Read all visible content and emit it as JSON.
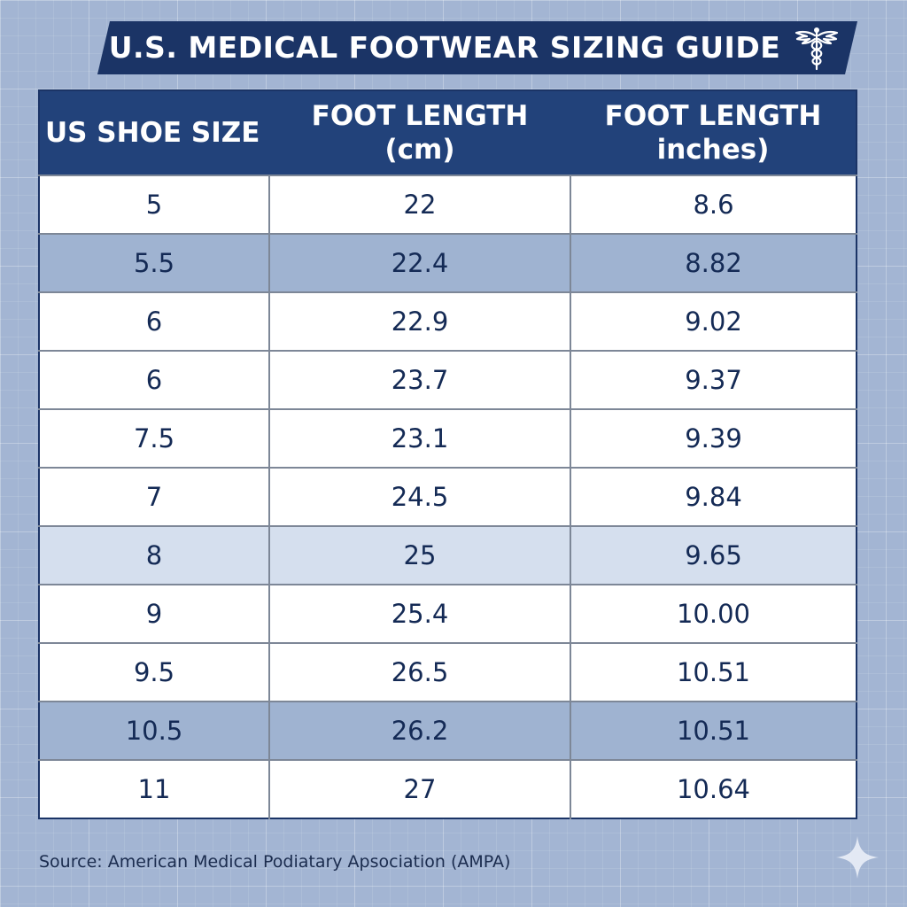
{
  "title": "U.S. MEDICAL FOOTWEAR SIZING GUIDE",
  "icons": {
    "title_emblem": "caduceus-icon",
    "corner_mark": "sparkle-icon"
  },
  "colors": {
    "banner": "#1b3466",
    "header": "#22427a",
    "background": "#a3b5d3",
    "row_white": "#ffffff",
    "row_mid": "#9fb3d1",
    "row_light": "#d5dfee",
    "text_dark": "#142a55"
  },
  "table": {
    "headers": [
      {
        "line1": "US SHOE SIZE",
        "line2": ""
      },
      {
        "line1": "FOOT LENGTH",
        "line2": "(cm)"
      },
      {
        "line1": "FOOT LENGTH",
        "line2": "inches)"
      }
    ],
    "rows": [
      {
        "size": "5",
        "cm": "22",
        "inches": "8.6",
        "shade": "white"
      },
      {
        "size": "5.5",
        "cm": "22.4",
        "inches": "8.82",
        "shade": "mid"
      },
      {
        "size": "6",
        "cm": "22.9",
        "inches": "9.02",
        "shade": "white"
      },
      {
        "size": "6",
        "cm": "23.7",
        "inches": "9.37",
        "shade": "white"
      },
      {
        "size": "7.5",
        "cm": "23.1",
        "inches": "9.39",
        "shade": "white"
      },
      {
        "size": "7",
        "cm": "24.5",
        "inches": "9.84",
        "shade": "white"
      },
      {
        "size": "8",
        "cm": "25",
        "inches": "9.65",
        "shade": "light"
      },
      {
        "size": "9",
        "cm": "25.4",
        "inches": "10.00",
        "shade": "white"
      },
      {
        "size": "9.5",
        "cm": "26.5",
        "inches": "10.51",
        "shade": "white"
      },
      {
        "size": "10.5",
        "cm": "26.2",
        "inches": "10.51",
        "shade": "mid"
      },
      {
        "size": "11",
        "cm": "27",
        "inches": "10.64",
        "shade": "white"
      }
    ]
  },
  "source": "Source: American Medical Podiatary Apsociation (AMPA)"
}
